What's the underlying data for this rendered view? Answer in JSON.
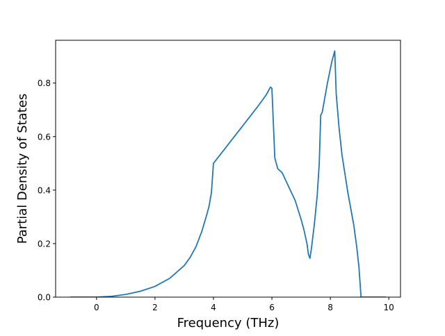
{
  "chart_data": {
    "type": "line",
    "title": "",
    "xlabel": "Frequency (THz)",
    "ylabel": "Partial Density of States",
    "xlim": [
      -1.4,
      10.4
    ],
    "ylim": [
      0.0,
      0.96
    ],
    "xticks": [
      0,
      2,
      4,
      6,
      8,
      10
    ],
    "xtick_labels": [
      "0",
      "2",
      "4",
      "6",
      "8",
      "10"
    ],
    "yticks": [
      0.0,
      0.2,
      0.4,
      0.6,
      0.8
    ],
    "ytick_labels": [
      "0.0",
      "0.2",
      "0.4",
      "0.6",
      "0.8"
    ],
    "grid": false,
    "legend": "none",
    "colors": {
      "line": "#1f77b4",
      "axes": "#000000"
    },
    "series": [
      {
        "x": [
          -0.9,
          -0.5,
          0.0,
          0.5,
          1.0,
          1.5,
          2.0,
          2.5,
          3.0,
          3.2,
          3.4,
          3.6,
          3.75,
          3.85,
          3.93,
          4.0,
          4.5,
          5.0,
          5.5,
          5.8,
          5.95,
          6.0,
          6.05,
          6.1,
          6.2,
          6.35,
          6.5,
          6.8,
          7.0,
          7.1,
          7.2,
          7.25,
          7.3,
          7.35,
          7.45,
          7.55,
          7.62,
          7.67,
          7.72,
          7.9,
          8.05,
          8.15,
          8.2,
          8.3,
          8.4,
          8.6,
          8.8,
          8.9,
          8.98,
          9.05,
          9.3,
          9.9
        ],
        "y": [
          0.0,
          0.0,
          0.0,
          0.003,
          0.01,
          0.022,
          0.04,
          0.07,
          0.118,
          0.148,
          0.188,
          0.245,
          0.3,
          0.34,
          0.39,
          0.5,
          0.57,
          0.64,
          0.71,
          0.755,
          0.785,
          0.78,
          0.65,
          0.52,
          0.48,
          0.465,
          0.43,
          0.36,
          0.29,
          0.25,
          0.2,
          0.16,
          0.145,
          0.18,
          0.27,
          0.38,
          0.5,
          0.68,
          0.69,
          0.8,
          0.88,
          0.92,
          0.76,
          0.63,
          0.53,
          0.39,
          0.27,
          0.19,
          0.11,
          0.0,
          0.0,
          0.0
        ]
      }
    ]
  }
}
